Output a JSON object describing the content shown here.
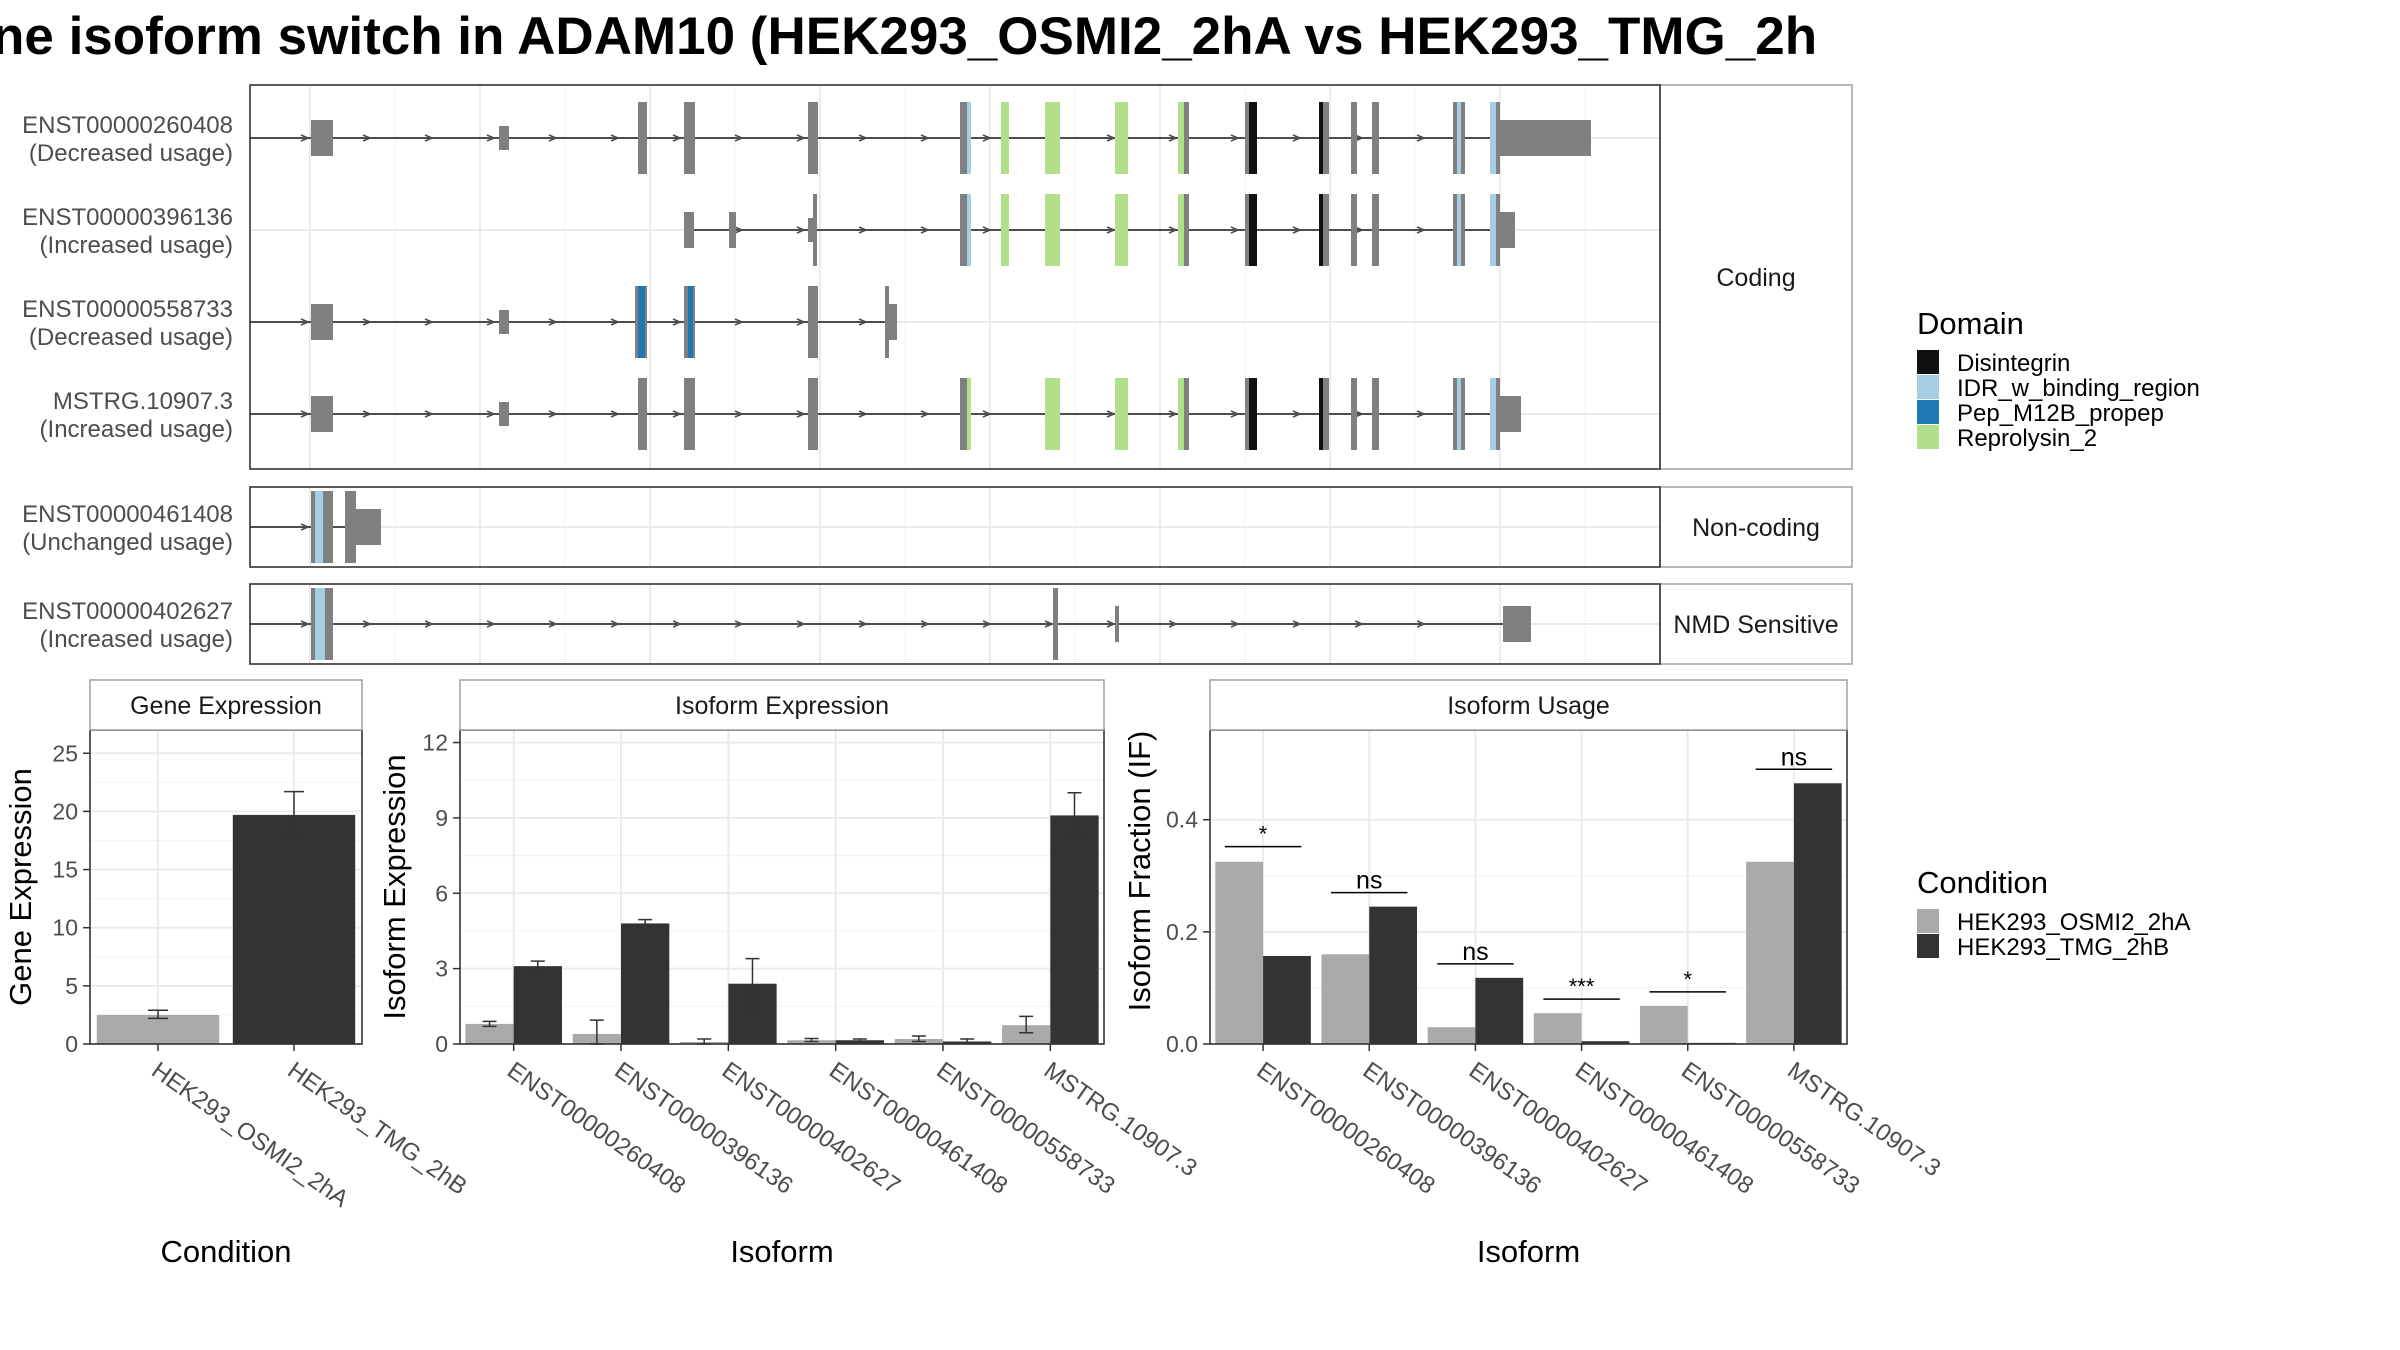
{
  "title": "ne isoform switch in ADAM10 (HEK293_OSMI2_2hA vs HEK293_TMG_2h",
  "colors": {
    "exon": "#808080",
    "intron": "#4d4d4d",
    "Disintegrin": "#111111",
    "IDR_w_binding_region": "#a6cee3",
    "Pep_M12B_propep": "#1f78b4",
    "Reprolysin_2": "#b2df8a",
    "cond1": "#aaaaaa",
    "cond2": "#333333"
  },
  "structure": {
    "facets": [
      {
        "label": "Coding",
        "rows": [
          {
            "id": "ENST00000260408",
            "usage": "(Decreased usage)"
          },
          {
            "id": "ENST00000396136",
            "usage": "(Increased usage)"
          },
          {
            "id": "ENST00000558733",
            "usage": "(Decreased usage)"
          },
          {
            "id": "MSTRG.10907.3",
            "usage": "(Increased usage)"
          }
        ]
      },
      {
        "label": "Non-coding",
        "rows": [
          {
            "id": "ENST00000461408",
            "usage": "(Unchanged usage)"
          }
        ]
      },
      {
        "label": "NMD Sensitive",
        "rows": [
          {
            "id": "ENST00000402627",
            "usage": "(Increased usage)"
          }
        ]
      }
    ]
  },
  "legend_domain": {
    "title": "Domain",
    "items": [
      {
        "label": "Disintegrin",
        "color": "#111111"
      },
      {
        "label": "IDR_w_binding_region",
        "color": "#a6cee3"
      },
      {
        "label": "Pep_M12B_propep",
        "color": "#1f78b4"
      },
      {
        "label": "Reprolysin_2",
        "color": "#b2df8a"
      }
    ]
  },
  "legend_condition": {
    "title": "Condition",
    "items": [
      {
        "label": "HEK293_OSMI2_2hA",
        "color": "#aaaaaa"
      },
      {
        "label": "HEK293_TMG_2hB",
        "color": "#333333"
      }
    ]
  },
  "chart_data": [
    {
      "type": "bar",
      "title": "Gene Expression",
      "xlabel": "Condition",
      "ylabel": "Gene Expression",
      "ylim": [
        0,
        27
      ],
      "yticks": [
        0,
        5,
        10,
        15,
        20,
        25
      ],
      "categories": [
        "HEK293_OSMI2_2hA",
        "HEK293_TMG_2hB"
      ],
      "values": [
        2.5,
        19.7
      ],
      "errors": [
        [
          2.2,
          2.9
        ],
        [
          17.8,
          21.7
        ]
      ]
    },
    {
      "type": "bar",
      "title": "Isoform Expression",
      "xlabel": "Isoform",
      "ylabel": "Isoform Expression",
      "ylim": [
        0,
        12.5
      ],
      "yticks": [
        0,
        3,
        6,
        9,
        12
      ],
      "categories": [
        "ENST00000260408",
        "ENST00000396136",
        "ENST00000402627",
        "ENST00000461408",
        "ENST00000558733",
        "MSTRG.10907.3"
      ],
      "series": [
        {
          "name": "HEK293_OSMI2_2hA",
          "values": [
            0.8,
            0.4,
            0.08,
            0.15,
            0.2,
            0.75
          ],
          "errors": [
            [
              0.7,
              0.9
            ],
            [
              0.0,
              0.95
            ],
            [
              0.0,
              0.2
            ],
            [
              0.1,
              0.22
            ],
            [
              0.1,
              0.32
            ],
            [
              0.45,
              1.1
            ]
          ]
        },
        {
          "name": "HEK293_TMG_2hB",
          "values": [
            3.1,
            4.8,
            2.4,
            0.15,
            0.1,
            9.1
          ],
          "errors": [
            [
              2.95,
              3.3
            ],
            [
              4.65,
              4.95
            ],
            [
              1.4,
              3.4
            ],
            [
              0.08,
              0.2
            ],
            [
              0.02,
              0.2
            ],
            [
              8.3,
              10.0
            ]
          ]
        }
      ]
    },
    {
      "type": "bar",
      "title": "Isoform Usage",
      "xlabel": "Isoform",
      "ylabel": "Isoform Fraction (IF)",
      "ylim": [
        0,
        0.56
      ],
      "yticks": [
        0.0,
        0.2,
        0.4
      ],
      "categories": [
        "ENST00000260408",
        "ENST00000396136",
        "ENST00000402627",
        "ENST00000461408",
        "ENST00000558733",
        "MSTRG.10907.3"
      ],
      "series": [
        {
          "name": "HEK293_OSMI2_2hA",
          "values": [
            0.325,
            0.16,
            0.03,
            0.055,
            0.068,
            0.325
          ]
        },
        {
          "name": "HEK293_TMG_2hB",
          "values": [
            0.157,
            0.245,
            0.118,
            0.005,
            0.002,
            0.465
          ]
        }
      ],
      "significance": [
        "*",
        "ns",
        "ns",
        "***",
        "*",
        "ns"
      ],
      "sig_y": [
        0.352,
        0.27,
        0.143,
        0.08,
        0.093,
        0.49
      ]
    }
  ]
}
